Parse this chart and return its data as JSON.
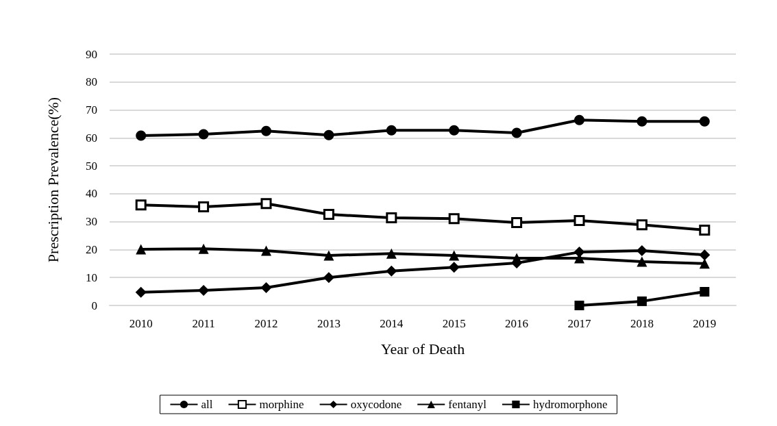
{
  "chart_data": {
    "type": "line",
    "xlabel": "Year of Death",
    "ylabel": "Prescription Prevalence(%)",
    "categories": [
      "2010",
      "2011",
      "2012",
      "2013",
      "2014",
      "2015",
      "2016",
      "2017",
      "2018",
      "2019"
    ],
    "series": [
      {
        "name": "all",
        "color": "#000000",
        "marker": "circle",
        "values": [
          60.8,
          61.3,
          62.5,
          61.0,
          62.7,
          62.7,
          61.8,
          66.4,
          65.9,
          65.9
        ]
      },
      {
        "name": "morphine",
        "color": "#000000",
        "marker": "square-open",
        "values": [
          36.0,
          35.3,
          36.5,
          32.6,
          31.4,
          31.1,
          29.7,
          30.4,
          28.9,
          27.0
        ]
      },
      {
        "name": "oxycodone",
        "color": "#000000",
        "marker": "diamond",
        "values": [
          4.7,
          5.4,
          6.4,
          10.0,
          12.3,
          13.7,
          15.2,
          19.1,
          19.6,
          18.1
        ]
      },
      {
        "name": "fentanyl",
        "color": "#000000",
        "marker": "triangle",
        "values": [
          20.1,
          20.3,
          19.6,
          17.9,
          18.6,
          17.9,
          16.9,
          16.9,
          15.7,
          15.0
        ]
      },
      {
        "name": "hydromorphone",
        "color": "#000000",
        "marker": "square",
        "values": [
          null,
          null,
          null,
          null,
          null,
          null,
          null,
          0,
          1.5,
          4.9
        ]
      }
    ],
    "ylim": [
      0,
      90
    ],
    "yticks": [
      0,
      10,
      20,
      30,
      40,
      50,
      60,
      70,
      80,
      90
    ],
    "grid": "y",
    "legend": "bottom",
    "line_style": "solid"
  }
}
